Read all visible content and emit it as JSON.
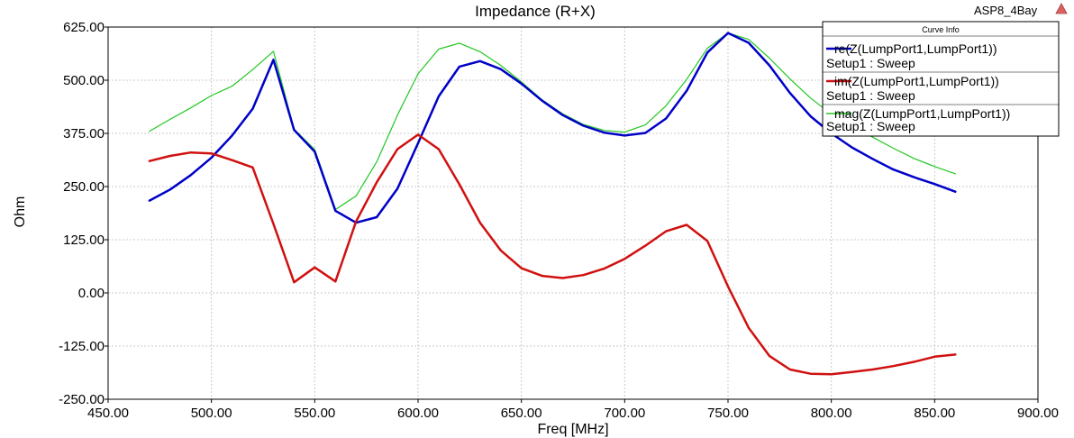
{
  "header": {
    "title": "Impedance (R+X)",
    "project": "ASP8_4Bay",
    "logo_icon": "ansoft-triangle-icon",
    "logo_color": "#e06060"
  },
  "legend": {
    "title": "Curve Info",
    "entries": [
      {
        "name": "re(Z(LumpPort1,LumpPort1))",
        "setup": "Setup1 : Sweep",
        "color": "#0000c8"
      },
      {
        "name": "im(Z(LumpPort1,LumpPort1))",
        "setup": "Setup1 : Sweep",
        "color": "#d01010"
      },
      {
        "name": "mag(Z(LumpPort1,LumpPort1))",
        "setup": "Setup1 : Sweep",
        "color": "#20c820"
      }
    ]
  },
  "chart_data": {
    "type": "line",
    "title": "Impedance (R+X)",
    "xlabel": "Freq [MHz]",
    "ylabel": "Ohm",
    "xlim": [
      450,
      900
    ],
    "ylim": [
      -250,
      625
    ],
    "grid": true,
    "legend_position": "top-right",
    "xticks": [
      "450.00",
      "500.00",
      "550.00",
      "600.00",
      "650.00",
      "700.00",
      "750.00",
      "800.00",
      "850.00",
      "900.00"
    ],
    "yticks": [
      "625.00",
      "500.00",
      "375.00",
      "250.00",
      "125.00",
      "0.00",
      "-125.00",
      "-250.00"
    ],
    "x": [
      470,
      480,
      490,
      500,
      510,
      520,
      530,
      540,
      550,
      560,
      570,
      580,
      590,
      600,
      610,
      620,
      630,
      640,
      650,
      660,
      670,
      680,
      690,
      700,
      710,
      720,
      730,
      740,
      750,
      760,
      770,
      780,
      790,
      800,
      810,
      820,
      830,
      840,
      850,
      860
    ],
    "series": [
      {
        "name": "re(Z(LumpPort1,LumpPort1))",
        "color": "#0000c8",
        "width": 2.5,
        "values": [
          217,
          243,
          277,
          318,
          370,
          433,
          548,
          383,
          332,
          193,
          165,
          178,
          245,
          352,
          462,
          532,
          545,
          526,
          492,
          452,
          418,
          393,
          377,
          370,
          376,
          410,
          475,
          565,
          611,
          588,
          535,
          470,
          415,
          375,
          342,
          315,
          290,
          272,
          256,
          238
        ]
      },
      {
        "name": "im(Z(LumpPort1,LumpPort1))",
        "color": "#d01010",
        "width": 2.5,
        "values": [
          310,
          322,
          330,
          328,
          312,
          295,
          162,
          25,
          60,
          27,
          168,
          260,
          338,
          372,
          338,
          255,
          165,
          100,
          58,
          40,
          35,
          42,
          57,
          80,
          111,
          145,
          160,
          122,
          15,
          -82,
          -148,
          -180,
          -190,
          -191,
          -186,
          -180,
          -172,
          -162,
          -150,
          -145
        ]
      },
      {
        "name": "mag(Z(LumpPort1,LumpPort1))",
        "color": "#20c820",
        "width": 1.2,
        "values": [
          380,
          408,
          435,
          464,
          486,
          525,
          568,
          385,
          337,
          196,
          228,
          308,
          418,
          515,
          573,
          587,
          567,
          535,
          496,
          454,
          421,
          396,
          382,
          378,
          395,
          440,
          502,
          575,
          611,
          596,
          552,
          503,
          458,
          420,
          392,
          366,
          340,
          316,
          297,
          280
        ]
      }
    ]
  }
}
